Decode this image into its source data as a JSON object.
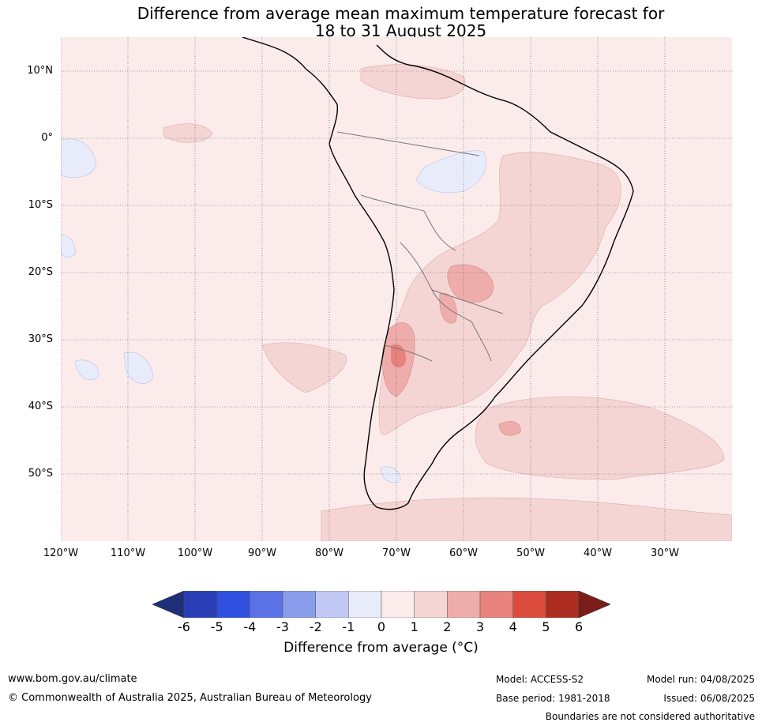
{
  "title": {
    "line1": "Difference from average mean maximum temperature forecast for",
    "line2": "18 to 31 August 2025"
  },
  "map": {
    "lat_labels": [
      "10°N",
      "0°",
      "10°S",
      "20°S",
      "30°S",
      "40°S",
      "50°S"
    ],
    "lon_labels": [
      "120°W",
      "110°W",
      "100°W",
      "90°W",
      "80°W",
      "70°W",
      "60°W",
      "50°W",
      "40°W",
      "30°W"
    ],
    "background_color": "#fbeceb"
  },
  "colorbar": {
    "tick_labels": [
      "-6",
      "-5",
      "-4",
      "-3",
      "-2",
      "-1",
      "0",
      "1",
      "2",
      "3",
      "4",
      "5",
      "6"
    ],
    "colors": [
      "#1f2f7a",
      "#2a3fb5",
      "#3050e0",
      "#5b72e6",
      "#8a9cec",
      "#c0c8f3",
      "#e8ebfa",
      "#fbeceb",
      "#f5d5d4",
      "#eeadab",
      "#e8827d",
      "#db4c3f",
      "#ad2d22",
      "#7b1d18"
    ],
    "title": "Difference from average (°C)"
  },
  "footer": {
    "website": "www.bom.gov.au/climate",
    "copyright": "© Commonwealth of Australia 2025, Australian Bureau of Meteorology",
    "model": "Model: ACCESS-S2",
    "base_period": "Base period: 1981-2018",
    "model_run": "Model run: 04/08/2025",
    "issued": "Issued: 06/08/2025",
    "disclaimer": "Boundaries are not considered authoritative"
  }
}
